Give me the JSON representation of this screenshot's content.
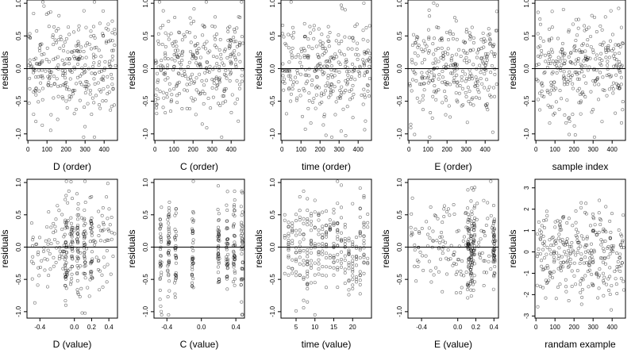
{
  "colors": {
    "background": "#ffffff",
    "axis": "#000000",
    "points": "#000000",
    "zero_line": "#000000"
  },
  "chart_data": [
    {
      "type": "scatter",
      "xlabel": "D (order)",
      "ylabel": "residuals",
      "xlim": [
        -5,
        470
      ],
      "ylim": [
        -1.1,
        1.05
      ],
      "xticks": [
        {
          "v": 0,
          "label": "0"
        },
        {
          "v": 100,
          "label": "100"
        },
        {
          "v": 200,
          "label": "200"
        },
        {
          "v": 300,
          "label": "300"
        },
        {
          "v": 400,
          "label": "400"
        }
      ],
      "yticks": [
        {
          "v": -1,
          "label": "-1.0"
        },
        {
          "v": -0.5,
          "label": "-0.5"
        },
        {
          "v": 0,
          "label": "0.0"
        },
        {
          "v": 0.5,
          "label": "0.5"
        },
        {
          "v": 1,
          "label": "1.0"
        }
      ],
      "hline": 0,
      "xdist": "order",
      "points_x": [],
      "points_y": [],
      "seed": 11
    },
    {
      "type": "scatter",
      "xlabel": "C (order)",
      "ylabel": "residuals",
      "xlim": [
        -5,
        470
      ],
      "ylim": [
        -1.1,
        1.05
      ],
      "xticks": [
        {
          "v": 0,
          "label": "0"
        },
        {
          "v": 100,
          "label": "100"
        },
        {
          "v": 200,
          "label": "200"
        },
        {
          "v": 300,
          "label": "300"
        },
        {
          "v": 400,
          "label": "400"
        }
      ],
      "yticks": [
        {
          "v": -1,
          "label": "-1.0"
        },
        {
          "v": -0.5,
          "label": "-0.5"
        },
        {
          "v": 0,
          "label": "0.0"
        },
        {
          "v": 0.5,
          "label": "0.5"
        },
        {
          "v": 1,
          "label": "1.0"
        }
      ],
      "hline": 0,
      "xdist": "order",
      "points_x": [],
      "points_y": [],
      "seed": 23
    },
    {
      "type": "scatter",
      "xlabel": "time (order)",
      "ylabel": "residuals",
      "xlim": [
        -5,
        470
      ],
      "ylim": [
        -1.1,
        1.05
      ],
      "xticks": [
        {
          "v": 0,
          "label": "0"
        },
        {
          "v": 100,
          "label": "100"
        },
        {
          "v": 200,
          "label": "200"
        },
        {
          "v": 300,
          "label": "300"
        },
        {
          "v": 400,
          "label": "400"
        }
      ],
      "yticks": [
        {
          "v": -1,
          "label": "-1.0"
        },
        {
          "v": -0.5,
          "label": "-0.5"
        },
        {
          "v": 0,
          "label": "0.0"
        },
        {
          "v": 0.5,
          "label": "0.5"
        },
        {
          "v": 1,
          "label": "1.0"
        }
      ],
      "hline": 0,
      "xdist": "order",
      "points_x": [],
      "points_y": [],
      "seed": 37
    },
    {
      "type": "scatter",
      "xlabel": "E (order)",
      "ylabel": "residuals",
      "xlim": [
        -5,
        470
      ],
      "ylim": [
        -1.1,
        1.05
      ],
      "xticks": [
        {
          "v": 0,
          "label": "0"
        },
        {
          "v": 100,
          "label": "100"
        },
        {
          "v": 200,
          "label": "200"
        },
        {
          "v": 300,
          "label": "300"
        },
        {
          "v": 400,
          "label": "400"
        }
      ],
      "yticks": [
        {
          "v": -1,
          "label": "-1.0"
        },
        {
          "v": -0.5,
          "label": "-0.5"
        },
        {
          "v": 0,
          "label": "0.0"
        },
        {
          "v": 0.5,
          "label": "0.5"
        },
        {
          "v": 1,
          "label": "1.0"
        }
      ],
      "hline": 0,
      "xdist": "order",
      "points_x": [],
      "points_y": [],
      "seed": 41
    },
    {
      "type": "scatter",
      "xlabel": "sample index",
      "ylabel": "residuals",
      "xlim": [
        -5,
        470
      ],
      "ylim": [
        -1.1,
        1.05
      ],
      "xticks": [
        {
          "v": 0,
          "label": "0"
        },
        {
          "v": 100,
          "label": "100"
        },
        {
          "v": 200,
          "label": "200"
        },
        {
          "v": 300,
          "label": "300"
        },
        {
          "v": 400,
          "label": "400"
        }
      ],
      "yticks": [
        {
          "v": -1,
          "label": "-1.0"
        },
        {
          "v": -0.5,
          "label": "-0.5"
        },
        {
          "v": 0,
          "label": "0.0"
        },
        {
          "v": 0.5,
          "label": "0.5"
        },
        {
          "v": 1,
          "label": "1.0"
        }
      ],
      "hline": 0,
      "xdist": "order",
      "points_x": [],
      "points_y": [],
      "seed": 53
    },
    {
      "type": "scatter",
      "xlabel": "D (value)",
      "ylabel": "residuals",
      "xlim": [
        -0.55,
        0.5
      ],
      "ylim": [
        -1.1,
        1.05
      ],
      "xticks": [
        {
          "v": -0.4,
          "label": "-0.4"
        },
        {
          "v": 0,
          "label": "0.0"
        },
        {
          "v": 0.2,
          "label": "0.2"
        },
        {
          "v": 0.4,
          "label": "0.4"
        }
      ],
      "yticks": [
        {
          "v": -1,
          "label": "-1.0"
        },
        {
          "v": -0.5,
          "label": "-0.5"
        },
        {
          "v": 0,
          "label": "0.0"
        },
        {
          "v": 0.5,
          "label": "0.5"
        },
        {
          "v": 1,
          "label": "1.0"
        }
      ],
      "hline": 0,
      "xdist": "mixed",
      "xrange": [
        -0.5,
        0.47
      ],
      "clusters": [
        -0.1,
        -0.03,
        0.04,
        0.12,
        0.2
      ],
      "points_x": [],
      "points_y": [],
      "seed": 67
    },
    {
      "type": "scatter",
      "xlabel": "C (value)",
      "ylabel": "residuals",
      "xlim": [
        -0.55,
        0.5
      ],
      "ylim": [
        -1.1,
        1.05
      ],
      "xticks": [
        {
          "v": -0.4,
          "label": "-0.4"
        },
        {
          "v": 0,
          "label": "0.0"
        },
        {
          "v": 0.4,
          "label": "0.4"
        }
      ],
      "yticks": [
        {
          "v": -1,
          "label": "-1.0"
        },
        {
          "v": -0.5,
          "label": "-0.5"
        },
        {
          "v": 0,
          "label": "0.0"
        },
        {
          "v": 0.5,
          "label": "0.5"
        },
        {
          "v": 1,
          "label": "1.0"
        }
      ],
      "hline": 0,
      "xdist": "clusters",
      "clusters": [
        -0.47,
        -0.38,
        -0.3,
        -0.1,
        0.2,
        0.3,
        0.38,
        0.47
      ],
      "points_x": [],
      "points_y": [],
      "seed": 71
    },
    {
      "type": "scatter",
      "xlabel": "time (value)",
      "ylabel": "residuals",
      "xlim": [
        1,
        25
      ],
      "ylim": [
        -1.1,
        1.05
      ],
      "xticks": [
        {
          "v": 5,
          "label": "5"
        },
        {
          "v": 10,
          "label": "10"
        },
        {
          "v": 15,
          "label": "15"
        },
        {
          "v": 20,
          "label": "20"
        }
      ],
      "yticks": [
        {
          "v": -1,
          "label": "-1.0"
        },
        {
          "v": -0.5,
          "label": "-0.5"
        },
        {
          "v": 0,
          "label": "0.0"
        },
        {
          "v": 0.5,
          "label": "0.5"
        },
        {
          "v": 1,
          "label": "1.0"
        }
      ],
      "hline": 0,
      "xdist": "integers",
      "xrange": [
        2,
        24
      ],
      "points_x": [],
      "points_y": [],
      "seed": 83
    },
    {
      "type": "scatter",
      "xlabel": "E (value)",
      "ylabel": "residuals",
      "xlim": [
        -0.55,
        0.45
      ],
      "ylim": [
        -1.1,
        1.05
      ],
      "xticks": [
        {
          "v": -0.4,
          "label": "-0.4"
        },
        {
          "v": 0,
          "label": "0.0"
        },
        {
          "v": 0.2,
          "label": "0.2"
        },
        {
          "v": 0.4,
          "label": "0.4"
        }
      ],
      "yticks": [
        {
          "v": -1,
          "label": "-1.0"
        },
        {
          "v": -0.5,
          "label": "-0.5"
        },
        {
          "v": 0,
          "label": "0.0"
        },
        {
          "v": 0.5,
          "label": "0.5"
        },
        {
          "v": 1,
          "label": "1.0"
        }
      ],
      "hline": 0,
      "xdist": "mixed",
      "xrange": [
        -0.52,
        0.42
      ],
      "clusters": [
        0.12,
        0.15,
        0.18,
        0.4
      ],
      "points_x": [],
      "points_y": [],
      "seed": 97
    },
    {
      "type": "scatter",
      "xlabel": "randam example",
      "ylabel": "residuals",
      "xlim": [
        -5,
        470
      ],
      "ylim": [
        -3.1,
        3.4
      ],
      "xticks": [
        {
          "v": 0,
          "label": "0"
        },
        {
          "v": 100,
          "label": "100"
        },
        {
          "v": 200,
          "label": "200"
        },
        {
          "v": 300,
          "label": "300"
        },
        {
          "v": 400,
          "label": "400"
        }
      ],
      "yticks": [
        {
          "v": -3,
          "label": "-3"
        },
        {
          "v": -2,
          "label": "-2"
        },
        {
          "v": -1,
          "label": "-1"
        },
        {
          "v": 0,
          "label": "0"
        },
        {
          "v": 1,
          "label": "1"
        },
        {
          "v": 2,
          "label": "2"
        },
        {
          "v": 3,
          "label": "3"
        }
      ],
      "hline": null,
      "xdist": "order",
      "ydist": "normal",
      "points_x": [],
      "points_y": [],
      "seed": 101
    }
  ]
}
